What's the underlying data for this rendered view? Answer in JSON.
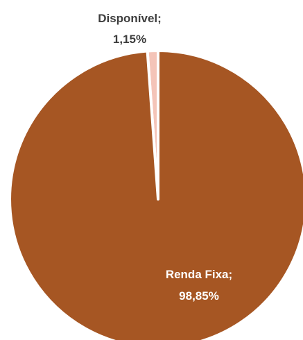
{
  "chart_data": {
    "type": "pie",
    "categories": [
      "Disponível",
      "Renda Fixa"
    ],
    "values": [
      1.15,
      98.85
    ],
    "unit": "%",
    "legend": "none",
    "colors": [
      "#f4c4b8",
      "#a65623"
    ],
    "separator_color": "#ffffff",
    "labels": [
      {
        "name_text": "Disponível;",
        "value_text": "1,15%",
        "text_color": "#3d3d3d"
      },
      {
        "name_text": "Renda Fixa;",
        "value_text": "98,85%",
        "text_color": "#ffffff"
      }
    ]
  }
}
